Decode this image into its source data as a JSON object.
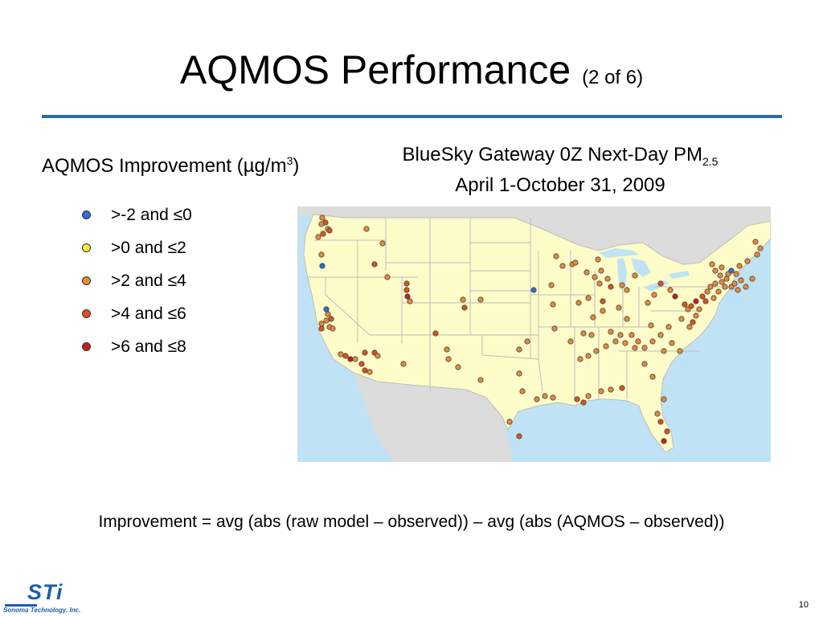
{
  "slide": {
    "title": "AQMOS Performance",
    "title_sub": "(2 of 6)",
    "page_number": "10"
  },
  "legend": {
    "heading": "AQMOS Improvement (µg/m",
    "heading_sup": "3",
    "heading_end": ")",
    "items": [
      {
        "label": ">-2 and ≤0",
        "color": "#2e6fd3"
      },
      {
        "label": ">0 and ≤2",
        "color": "#f2ec3a"
      },
      {
        "label": ">2 and ≤4",
        "color": "#e58a3a"
      },
      {
        "label": ">4 and ≤6",
        "color": "#d9531e"
      },
      {
        "label": ">6 and ≤8",
        "color": "#c0201a"
      }
    ]
  },
  "map": {
    "title_line1": "BlueSky Gateway 0Z Next-Day PM",
    "title_sub": "2.5",
    "title_line2": "April 1-October 31, 2009",
    "colors": {
      "land": "#fefcc8",
      "water": "#bfe3f4",
      "neighbor": "#dcdcdc",
      "border": "#bdbdbd"
    }
  },
  "formula": "Improvement = avg (abs (raw model – observed)) – avg (abs (AQMOS – observed))",
  "logo": {
    "mark": "STi",
    "text": "Sonoma Technology, Inc."
  }
}
